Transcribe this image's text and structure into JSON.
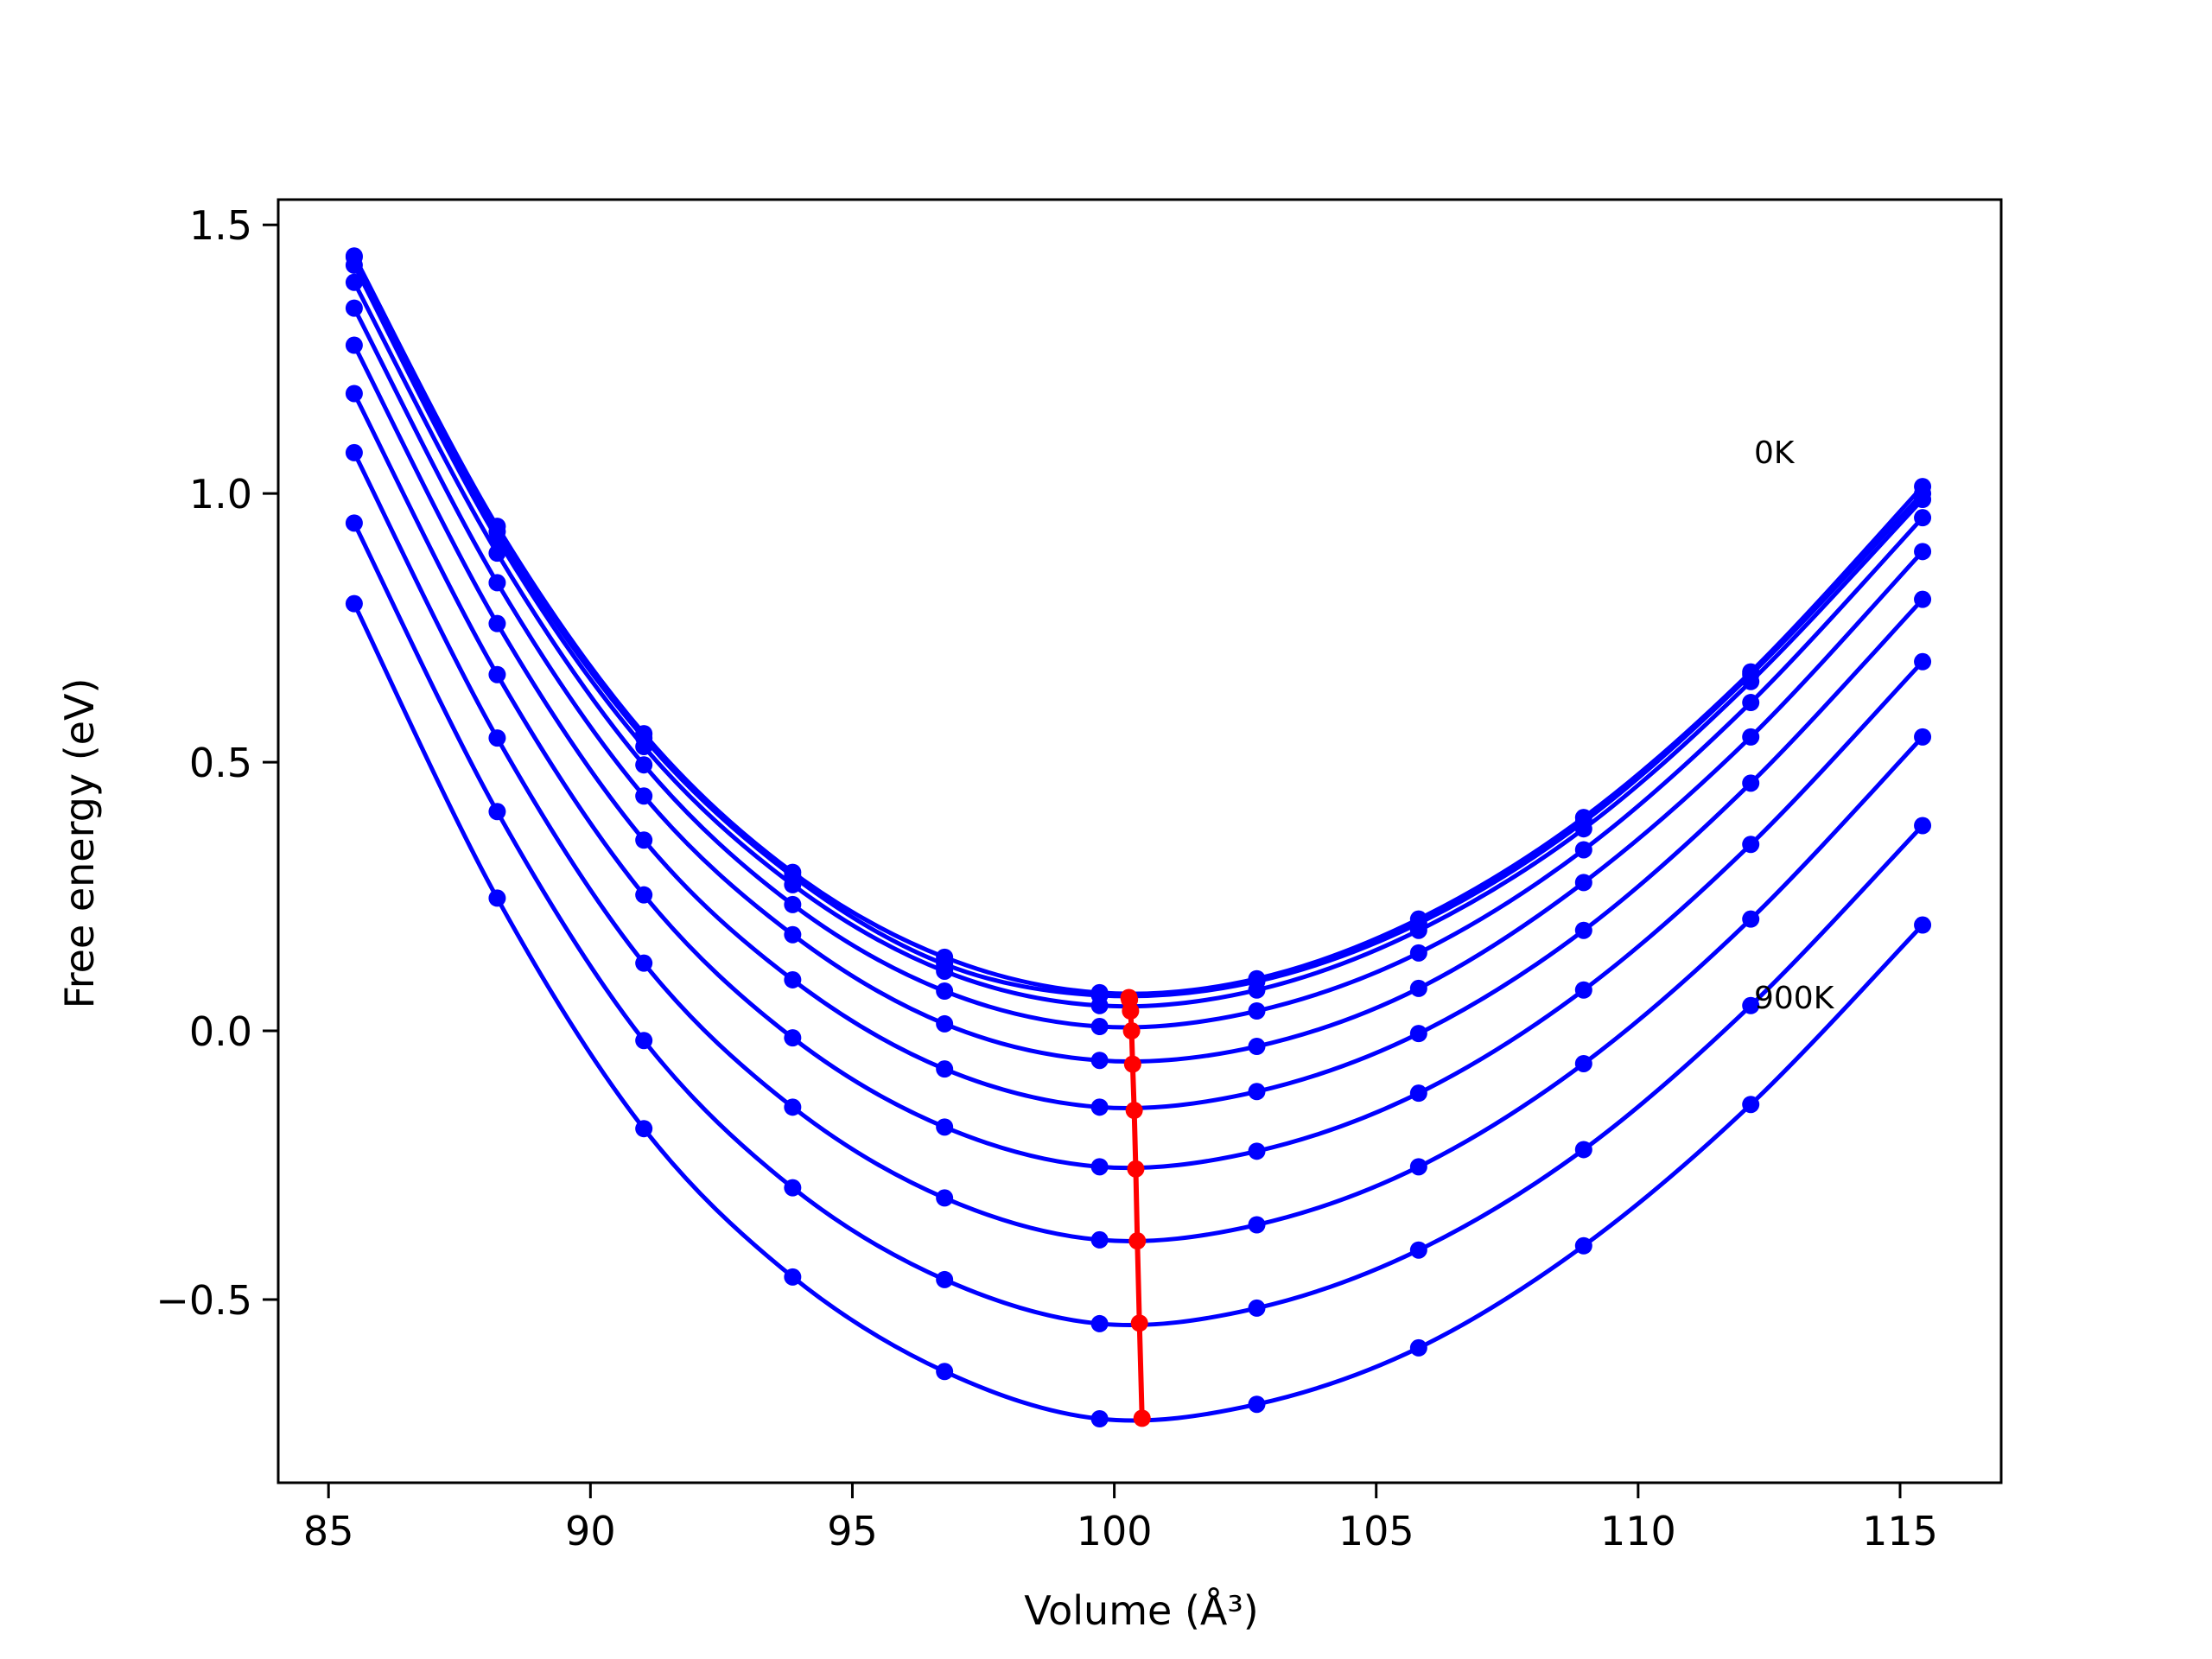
{
  "chart_data": {
    "type": "line",
    "title": "",
    "xlabel": "Volume (Å³)",
    "ylabel": "Free energy (eV)",
    "xlim": [
      84.04,
      116.93
    ],
    "ylim": [
      -0.841,
      1.547
    ],
    "xticks": [
      85,
      90,
      95,
      100,
      105,
      110,
      115
    ],
    "xtick_labels": [
      "85",
      "90",
      "95",
      "100",
      "105",
      "110",
      "115"
    ],
    "yticks": [
      -0.5,
      0.0,
      0.5,
      1.0,
      1.5
    ],
    "ytick_labels": [
      "−0.5",
      "0.0",
      "0.5",
      "1.0",
      "1.5"
    ],
    "grid": false,
    "annotations": [
      {
        "text": "0K",
        "x": 112.2,
        "y": 1.07
      },
      {
        "text": "900K",
        "x": 112.2,
        "y": 0.06
      }
    ],
    "x": [
      85.49,
      88.22,
      91.02,
      93.86,
      96.76,
      99.72,
      102.72,
      105.81,
      108.96,
      112.15,
      115.43
    ],
    "series": [
      {
        "color": "#0000ff",
        "values": [
          1.442,
          0.939,
          0.553,
          0.295,
          0.137,
          0.071,
          0.097,
          0.208,
          0.397,
          0.668,
          1.013
        ]
      },
      {
        "color": "#0000ff",
        "values": [
          1.44,
          0.929,
          0.545,
          0.288,
          0.124,
          0.066,
          0.092,
          0.2,
          0.389,
          0.663,
          1.0
        ]
      },
      {
        "color": "#0000ff",
        "values": [
          1.425,
          0.916,
          0.529,
          0.272,
          0.111,
          0.047,
          0.076,
          0.187,
          0.376,
          0.65,
          0.989
        ]
      },
      {
        "color": "#0000ff",
        "values": [
          1.393,
          0.889,
          0.495,
          0.235,
          0.074,
          0.008,
          0.037,
          0.145,
          0.337,
          0.611,
          0.955
        ]
      },
      {
        "color": "#0000ff",
        "values": [
          1.345,
          0.834,
          0.437,
          0.179,
          0.013,
          -0.055,
          -0.029,
          0.079,
          0.276,
          0.547,
          0.892
        ]
      },
      {
        "color": "#0000ff",
        "values": [
          1.276,
          0.758,
          0.355,
          0.095,
          -0.071,
          -0.142,
          -0.113,
          -0.005,
          0.187,
          0.461,
          0.803
        ]
      },
      {
        "color": "#0000ff",
        "values": [
          1.186,
          0.663,
          0.253,
          -0.013,
          -0.179,
          -0.253,
          -0.224,
          -0.116,
          0.076,
          0.347,
          0.687
        ]
      },
      {
        "color": "#0000ff",
        "values": [
          1.076,
          0.545,
          0.126,
          -0.142,
          -0.311,
          -0.389,
          -0.361,
          -0.253,
          -0.061,
          0.208,
          0.547
        ]
      },
      {
        "color": "#0000ff",
        "values": [
          0.945,
          0.408,
          -0.018,
          -0.292,
          -0.463,
          -0.545,
          -0.516,
          -0.408,
          -0.221,
          0.047,
          0.382
        ]
      },
      {
        "color": "#0000ff",
        "values": [
          0.795,
          0.247,
          -0.182,
          -0.458,
          -0.634,
          -0.722,
          -0.695,
          -0.59,
          -0.4,
          -0.137,
          0.197
        ]
      }
    ],
    "minima": {
      "color": "#ff0000",
      "x": [
        100.28,
        100.29,
        100.31,
        100.33,
        100.35,
        100.38,
        100.41,
        100.44,
        100.48,
        100.53
      ],
      "y": [
        0.062,
        0.058,
        0.037,
        0.0,
        -0.062,
        -0.148,
        -0.257,
        -0.391,
        -0.544,
        -0.721
      ]
    }
  }
}
